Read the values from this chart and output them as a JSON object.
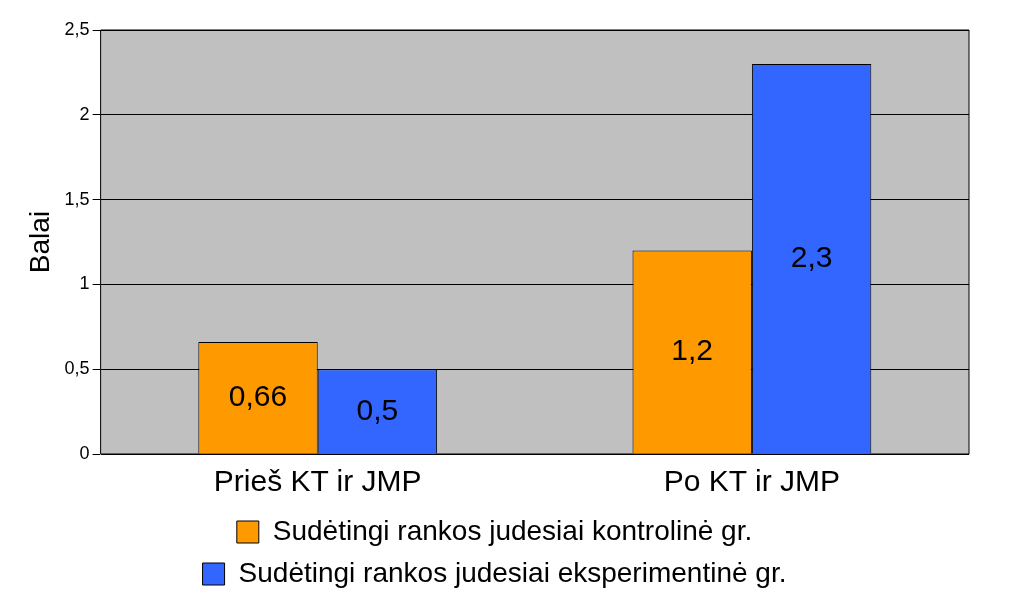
{
  "chart_data": {
    "type": "bar",
    "ylabel": "Balai",
    "categories": [
      "Prieš KT ir JMP",
      "Po KT ir JMP"
    ],
    "series": [
      {
        "name": "Sudėtingi rankos judesiai kontrolinė gr.",
        "color": "#ff9900",
        "values": [
          0.66,
          1.2
        ],
        "value_labels": [
          "0,66",
          "1,2"
        ]
      },
      {
        "name": "Sudėtingi rankos judesiai eksperimentinė gr.",
        "color": "#3366ff",
        "values": [
          0.5,
          2.3
        ],
        "value_labels": [
          "0,5",
          "2,3"
        ]
      }
    ],
    "ylim": [
      0,
      2.5
    ],
    "yticks": [
      0,
      {
        "value": 0.5,
        "label": "0,5"
      },
      1,
      {
        "value": 1.5,
        "label": "1,5"
      },
      2,
      {
        "value": 2.5,
        "label": "2,5"
      }
    ],
    "grid": "y",
    "legend": "bottom"
  }
}
